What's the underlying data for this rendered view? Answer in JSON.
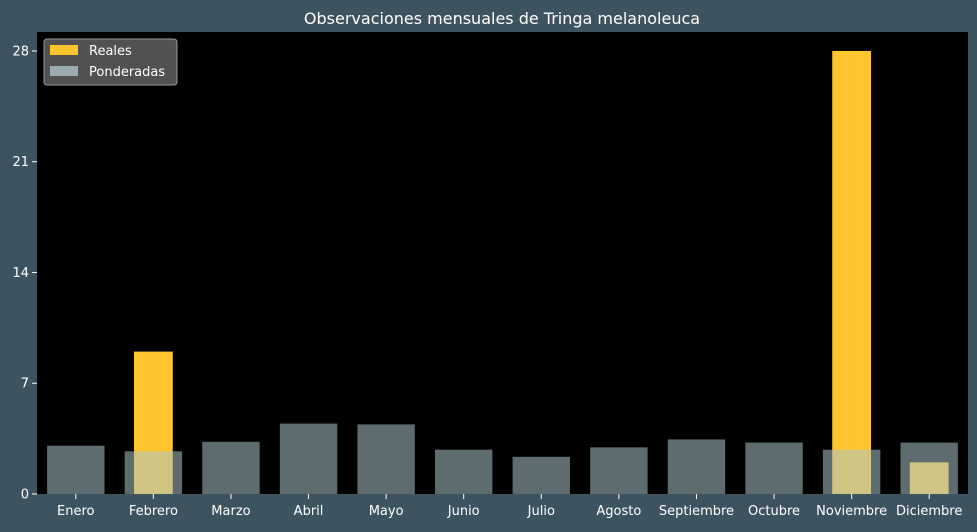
{
  "chart_data": {
    "type": "bar",
    "title": "Observaciones mensuales de Tringa melanoleuca",
    "xlabel": "",
    "ylabel": "",
    "categories": [
      "Enero",
      "Febrero",
      "Marzo",
      "Abril",
      "Mayo",
      "Junio",
      "Julio",
      "Agosto",
      "Septiembre",
      "Octubre",
      "Noviembre",
      "Diciembre"
    ],
    "series": [
      {
        "name": "Reales",
        "color": "#ffc42e",
        "values": [
          0,
          9,
          0,
          0,
          0,
          0,
          0,
          0,
          0,
          0,
          28,
          2
        ]
      },
      {
        "name": "Ponderadas",
        "color": "#a9c4c9",
        "opacity": 0.55,
        "values": [
          3.05,
          2.7,
          3.3,
          4.45,
          4.4,
          2.8,
          2.35,
          2.95,
          3.45,
          3.25,
          2.8,
          3.25
        ]
      }
    ],
    "ylim": [
      0,
      29.2
    ],
    "yticks": [
      0,
      7,
      14,
      21,
      28
    ],
    "grid": false,
    "legend_position": "top-left",
    "colors": {
      "figure_background": "#3e5360",
      "plot_background": "#000000",
      "text": "#ffffff"
    }
  }
}
